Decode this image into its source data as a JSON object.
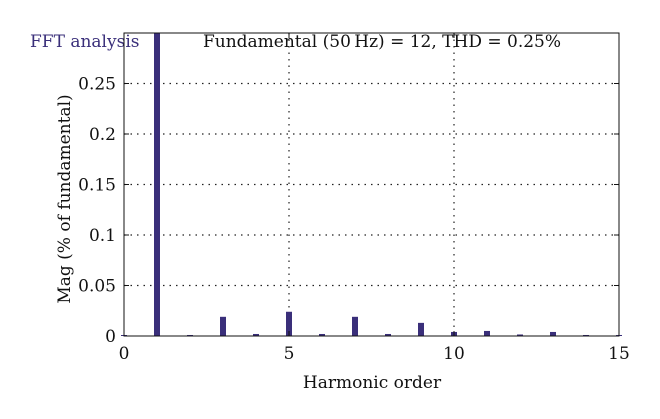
{
  "panel_label": "FFT analysis",
  "chart_data": {
    "type": "bar",
    "title": "Fundamental (50 Hz) = 12, THD = 0.25%",
    "xlabel": "Harmonic order",
    "ylabel": "Mag (% of fundamental)",
    "xlim": [
      0,
      15
    ],
    "ylim": [
      0,
      0.3
    ],
    "xticks": [
      0,
      5,
      10,
      15
    ],
    "yticks": [
      0,
      0.05,
      0.1,
      0.15,
      0.2,
      0.25
    ],
    "xtick_labels": [
      "0",
      "5",
      "10",
      "15"
    ],
    "ytick_labels": [
      "0",
      "0.05",
      "0.1",
      "0.15",
      "0.2",
      "0.25"
    ],
    "grid": true,
    "bar_color": "#3a2f7a",
    "series": [
      {
        "x": [
          0,
          1,
          2,
          3,
          4,
          5,
          6,
          7,
          8,
          9,
          10,
          11,
          12,
          13,
          14,
          15
        ],
        "values": [
          0.0005,
          0.3,
          0.001,
          0.019,
          0.002,
          0.024,
          0.002,
          0.019,
          0.002,
          0.013,
          0.004,
          0.005,
          0.0015,
          0.004,
          0.001,
          0.001
        ]
      }
    ]
  }
}
